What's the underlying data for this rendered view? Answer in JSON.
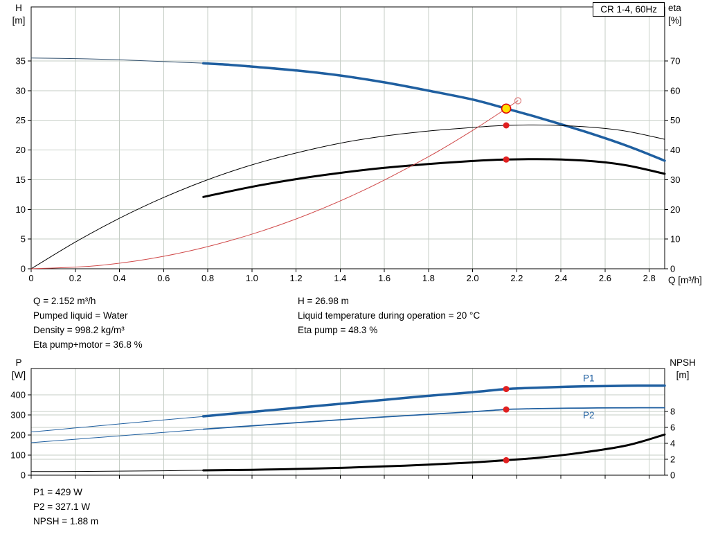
{
  "title_box": {
    "label": "CR 1-4, 60Hz"
  },
  "colors": {
    "background": "#ffffff",
    "axis": "#000000",
    "grid": "#c6cec6",
    "curve_blue": "#1f5fa0",
    "curve_black": "#000000",
    "curve_red": "#d04a4a",
    "marker_red": "#e02020",
    "marker_ring": "#dd0000",
    "marker_yellow": "#ffe000",
    "marker_open": "#e08a8a"
  },
  "axis_labels": {
    "h_quantity": "H",
    "h_unit": "[m]",
    "eta_quantity": "eta",
    "eta_unit": "[%]",
    "q_axis": "Q [m³/h]",
    "p_quantity": "P",
    "p_unit": "[W]",
    "npsh_quantity": "NPSH",
    "npsh_unit": "[m]"
  },
  "info": {
    "left": [
      "Q = 2.152 m³/h",
      "Pumped liquid = Water",
      "Density = 998.2 kg/m³",
      "Eta pump+motor = 36.8 %"
    ],
    "right": [
      "H = 26.98 m",
      "Liquid temperature during operation = 20 °C",
      "Eta pump = 48.3 %"
    ],
    "bottom": [
      "P1 = 429 W",
      "P2 = 327.1 W",
      "NPSH = 1.88 m"
    ]
  },
  "chart_data": [
    {
      "type": "line",
      "title": "CR 1-4, 60Hz",
      "x_axis": {
        "label": "Q [m³/h]",
        "min": 0,
        "max": 2.87,
        "show_tick_labels": true,
        "tick_values": [
          0,
          0.2,
          0.4,
          0.6,
          0.8,
          1,
          1.2,
          1.4,
          1.6,
          1.8,
          2,
          2.2,
          2.4,
          2.6,
          2.8
        ],
        "tick_labels": [
          "0",
          "0.2",
          "0.4",
          "0.6",
          "0.8",
          "1.0",
          "1.2",
          "1.4",
          "1.6",
          "1.8",
          "2.0",
          "2.2",
          "2.4",
          "2.6",
          "2.8"
        ]
      },
      "y_left": {
        "label": "H [m]",
        "min": 0,
        "max": 44.1,
        "tick_values": [
          0,
          5,
          10,
          15,
          20,
          25,
          30,
          35
        ],
        "tick_labels": [
          "0",
          "5",
          "10",
          "15",
          "20",
          "25",
          "30",
          "35"
        ]
      },
      "y_right": {
        "label": "eta [%]",
        "min": 0,
        "max": 88.2,
        "tick_values": [
          0,
          10,
          20,
          30,
          40,
          50,
          60,
          70
        ],
        "tick_labels": [
          "0",
          "10",
          "20",
          "30",
          "40",
          "50",
          "60",
          "70"
        ]
      },
      "series": [
        {
          "name": "h-below-min-flow",
          "axis": "left",
          "color": "#31506e",
          "width": 1,
          "x": [
            0,
            0.2,
            0.4,
            0.6,
            0.8
          ],
          "y": [
            35.5,
            35.4,
            35.2,
            34.9,
            34.6
          ]
        },
        {
          "name": "h-curve",
          "axis": "left",
          "color": "#1f5fa0",
          "width": 3.5,
          "x": [
            0.78,
            0.9,
            1.0,
            1.2,
            1.4,
            1.6,
            1.8,
            2.0,
            2.152,
            2.3,
            2.5,
            2.7,
            2.87
          ],
          "y": [
            34.6,
            34.35,
            34.05,
            33.4,
            32.55,
            31.4,
            30.0,
            28.5,
            26.98,
            25.45,
            23.2,
            20.7,
            18.2
          ]
        },
        {
          "name": "eta-pump",
          "axis": "right",
          "color": "#000000",
          "width": 1,
          "x": [
            0,
            0.2,
            0.4,
            0.6,
            0.8,
            1.0,
            1.2,
            1.4,
            1.6,
            1.8,
            2.0,
            2.152,
            2.35,
            2.55,
            2.7,
            2.87
          ],
          "y": [
            0,
            9,
            17,
            24,
            30,
            35,
            39,
            42.3,
            44.7,
            46.4,
            47.6,
            48.3,
            48.4,
            47.6,
            46.3,
            43.6
          ]
        },
        {
          "name": "eta-pump-motor",
          "axis": "right",
          "color": "#000000",
          "width": 3,
          "x": [
            0.78,
            1.0,
            1.2,
            1.4,
            1.6,
            1.8,
            2.0,
            2.152,
            2.35,
            2.55,
            2.7,
            2.87
          ],
          "y": [
            24.2,
            27.6,
            30.2,
            32.3,
            34.0,
            35.3,
            36.3,
            36.8,
            36.9,
            36.2,
            34.8,
            32.0
          ]
        },
        {
          "name": "system-curve",
          "axis": "left",
          "color": "#d04a4a",
          "width": 1,
          "x": [
            0,
            0.3,
            0.6,
            0.9,
            1.2,
            1.5,
            1.8,
            2.0,
            2.152,
            2.205
          ],
          "y": [
            0,
            0.52,
            2.1,
            4.72,
            8.39,
            13.11,
            18.88,
            23.3,
            26.98,
            28.3
          ]
        }
      ],
      "markers": [
        {
          "type": "open",
          "axis": "left",
          "x": 2.205,
          "y": 28.3
        },
        {
          "type": "dot",
          "axis": "right",
          "x": 2.152,
          "y": 48.3
        },
        {
          "type": "dot",
          "axis": "right",
          "x": 2.152,
          "y": 36.8
        },
        {
          "type": "duty",
          "axis": "left",
          "x": 2.152,
          "y": 26.98
        }
      ],
      "annotations": []
    },
    {
      "type": "line",
      "title": "Power and NPSH curves",
      "x_axis": {
        "label": "",
        "min": 0,
        "max": 2.87,
        "show_tick_labels": false,
        "tick_values": [
          0,
          0.2,
          0.4,
          0.6,
          0.8,
          1,
          1.2,
          1.4,
          1.6,
          1.8,
          2,
          2.2,
          2.4,
          2.6,
          2.8
        ],
        "tick_labels": [
          "",
          "",
          "",
          "",
          "",
          "",
          "",
          "",
          "",
          "",
          "",
          "",
          "",
          "",
          ""
        ]
      },
      "y_left": {
        "label": "P [W]",
        "min": 0,
        "max": 531,
        "tick_values": [
          0,
          100,
          200,
          300,
          400
        ],
        "tick_labels": [
          "0",
          "100",
          "200",
          "300",
          "400"
        ]
      },
      "y_right": {
        "label": "NPSH [m]",
        "min": 0,
        "max": 13.39,
        "tick_values": [
          0,
          2,
          4,
          6,
          8
        ],
        "tick_labels": [
          "0",
          "2",
          "4",
          "6",
          "8"
        ]
      },
      "series": [
        {
          "name": "p1-below-min-flow",
          "axis": "left",
          "color": "#1f5fa0",
          "width": 1,
          "x": [
            0,
            0.2,
            0.4,
            0.6,
            0.8
          ],
          "y": [
            215,
            235,
            255,
            275,
            294
          ]
        },
        {
          "name": "p1-curve",
          "axis": "left",
          "color": "#1f5fa0",
          "width": 3.5,
          "x": [
            0.78,
            1.0,
            1.2,
            1.4,
            1.6,
            1.8,
            2.0,
            2.152,
            2.3,
            2.5,
            2.7,
            2.87
          ],
          "y": [
            293,
            315,
            335,
            355,
            375,
            395,
            413,
            429,
            436,
            442,
            445,
            446
          ]
        },
        {
          "name": "p2-below-min-flow",
          "axis": "left",
          "color": "#1f5fa0",
          "width": 1,
          "x": [
            0,
            0.2,
            0.4,
            0.6,
            0.8
          ],
          "y": [
            162,
            179,
            196,
            213,
            230
          ]
        },
        {
          "name": "p2-curve",
          "axis": "left",
          "color": "#1f5fa0",
          "width": 1.75,
          "x": [
            0.78,
            1.0,
            1.2,
            1.4,
            1.6,
            1.8,
            2.0,
            2.152,
            2.3,
            2.5,
            2.7,
            2.87
          ],
          "y": [
            229,
            246,
            261,
            276,
            290,
            303,
            316,
            327.1,
            331.5,
            334,
            335.5,
            336
          ]
        },
        {
          "name": "npsh-below-min-flow",
          "axis": "right",
          "color": "#000000",
          "width": 1,
          "x": [
            0,
            0.2,
            0.4,
            0.6,
            0.8
          ],
          "y": [
            0.45,
            0.47,
            0.51,
            0.56,
            0.62
          ]
        },
        {
          "name": "npsh-curve",
          "axis": "right",
          "color": "#000000",
          "width": 3,
          "x": [
            0.78,
            1.0,
            1.2,
            1.4,
            1.6,
            1.8,
            2.0,
            2.152,
            2.3,
            2.5,
            2.7,
            2.87
          ],
          "y": [
            0.61,
            0.68,
            0.78,
            0.92,
            1.1,
            1.33,
            1.6,
            1.88,
            2.2,
            2.85,
            3.75,
            5.1
          ]
        }
      ],
      "markers": [
        {
          "type": "dot",
          "axis": "left",
          "x": 2.152,
          "y": 429
        },
        {
          "type": "dot",
          "axis": "left",
          "x": 2.152,
          "y": 327.1
        },
        {
          "type": "dot",
          "axis": "right",
          "x": 2.152,
          "y": 1.88
        }
      ],
      "annotations": [
        {
          "text": "P1",
          "x": 2.5,
          "y": 468,
          "axis": "left",
          "color": "#1f5fa0"
        },
        {
          "text": "P2",
          "x": 2.5,
          "y": 283,
          "axis": "left",
          "color": "#1f5fa0"
        }
      ]
    }
  ]
}
